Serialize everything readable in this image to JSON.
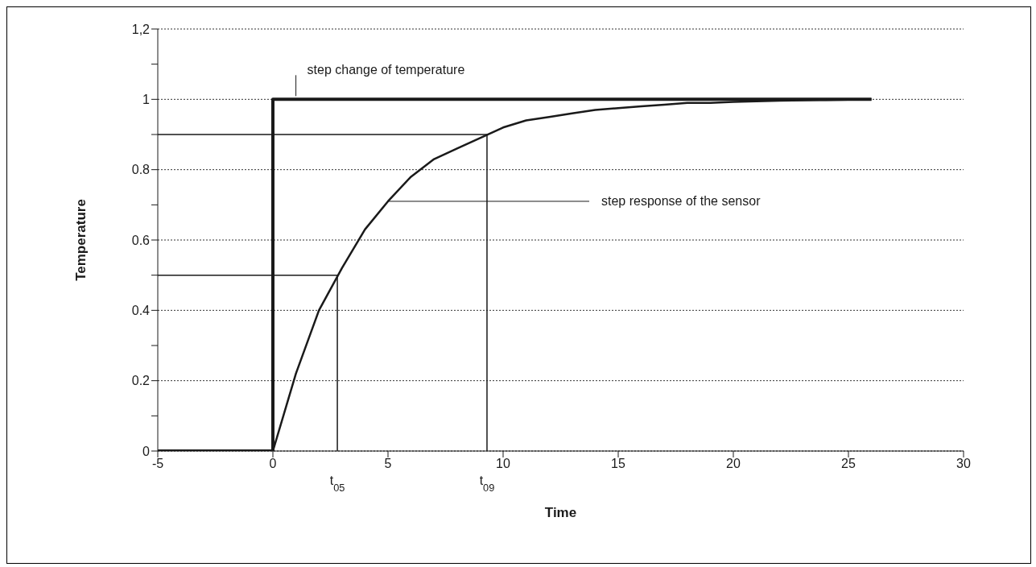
{
  "chart_data": {
    "type": "line",
    "xlabel": "Time",
    "ylabel": "Temperature",
    "xlim": [
      -5,
      30
    ],
    "xticks": [
      -5,
      0,
      5,
      10,
      15,
      20,
      25,
      30
    ],
    "ylim": [
      0,
      1.2
    ],
    "yticks": [
      0,
      {
        "value": 0.1,
        "label": null
      },
      0.2,
      {
        "value": 0.3,
        "label": null
      },
      0.4,
      {
        "value": 0.5,
        "label": null
      },
      0.6,
      {
        "value": 0.7,
        "label": null
      },
      0.8,
      {
        "value": 0.9,
        "label": null
      },
      1,
      {
        "value": 1.1,
        "label": null
      },
      {
        "value": 1.2,
        "label": "1,2"
      }
    ],
    "grid": "y",
    "marker": "none",
    "line_style": "solid",
    "series": [
      {
        "color": "#1a1a1a",
        "x": [
          -5,
          0,
          0,
          26
        ],
        "values": [
          0,
          0,
          1,
          1
        ]
      },
      {
        "color": "#1a1a1a",
        "x": [
          0,
          1,
          2,
          3,
          4,
          5,
          6,
          7,
          8,
          9,
          10,
          11,
          12,
          13,
          14,
          15,
          16,
          17,
          18,
          19,
          20,
          22,
          24,
          26
        ],
        "values": [
          0,
          0.22,
          0.4,
          0.52,
          0.63,
          0.71,
          0.78,
          0.83,
          0.86,
          0.89,
          0.92,
          0.94,
          0.95,
          0.96,
          0.97,
          0.975,
          0.98,
          0.985,
          0.99,
          0.99,
          0.993,
          0.996,
          0.998,
          1
        ]
      },
      {
        "color": "#1a1a1a",
        "x": [
          -5,
          2.8,
          2.8
        ],
        "values": [
          0.5,
          0.5,
          0
        ]
      },
      {
        "color": "#1a1a1a",
        "x": [
          -5,
          9.3,
          9.3
        ],
        "values": [
          0.9,
          0.9,
          0
        ]
      }
    ],
    "annotations": [
      {
        "text": "step change of temperature",
        "x": 1,
        "y": 1
      },
      {
        "text": "step response of the sensor",
        "x": 5,
        "y": 0.71
      },
      {
        "text": "t$_{05}$",
        "x": 2.8,
        "y": 0
      },
      {
        "text": "t$_{09}$",
        "x": 9.3,
        "y": 0
      }
    ]
  }
}
